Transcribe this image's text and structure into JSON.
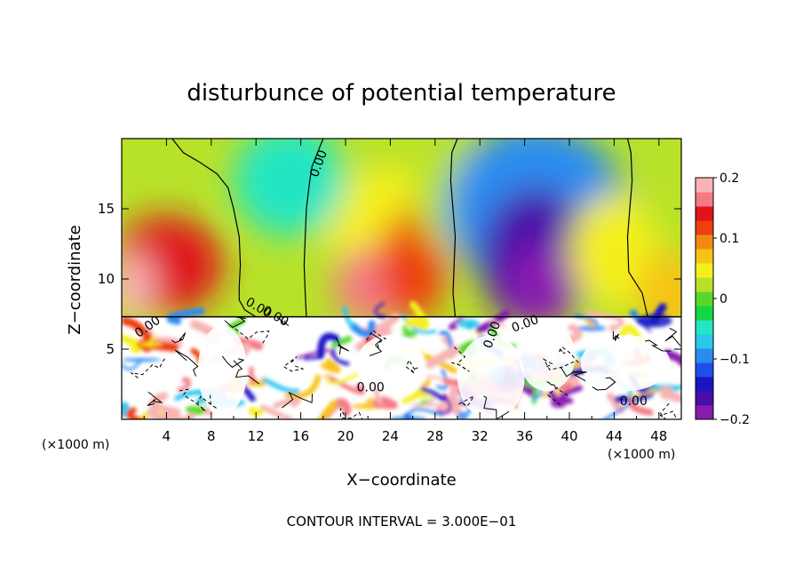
{
  "chart_data": {
    "type": "heatmap",
    "title": "disturbunce of potential temperature",
    "xlabel": "X−coordinate",
    "ylabel": "Z−coordinate",
    "x_unit": "(×1000 m)",
    "y_unit": "(×1000 m)",
    "xlim": [
      0,
      50
    ],
    "ylim": [
      0,
      20
    ],
    "x_ticks": [
      4,
      8,
      12,
      16,
      20,
      24,
      28,
      32,
      36,
      40,
      44,
      48
    ],
    "y_ticks": [
      5,
      10,
      15
    ],
    "colorbar": {
      "range": [
        -0.2,
        0.2
      ],
      "tick_values": [
        0.2,
        0.1,
        0,
        -0.1,
        -0.2
      ],
      "tick_labels": [
        "0.2",
        "0.1",
        "0",
        "−0.1",
        "−0.2"
      ],
      "colors": [
        "#8a1bb0",
        "#4a0fa8",
        "#1a14c4",
        "#1f4fe8",
        "#2b8cf0",
        "#2cc7ef",
        "#22e6c2",
        "#14d640",
        "#5ad82a",
        "#b8e22a",
        "#f4f01e",
        "#f7c316",
        "#f28a12",
        "#ee3f10",
        "#e0141a",
        "#f47b85",
        "#f8b4b4"
      ]
    },
    "contour_interval": "CONTOUR INTERVAL = 3.000E−01",
    "contour_labels": [
      "0.00",
      "0.00",
      "0.00",
      "0.00",
      "0.00",
      "0.00",
      "0.00",
      "0.00"
    ],
    "blobs": [
      {
        "x": 24,
        "z": 14,
        "v": 0.04
      },
      {
        "x": 4,
        "z": 11,
        "v": 0.13
      },
      {
        "x": 1,
        "z": 9.5,
        "v": 0.18
      },
      {
        "x": 22,
        "z": 9.5,
        "v": 0.16
      },
      {
        "x": 26,
        "z": 11,
        "v": 0.12
      },
      {
        "x": 30,
        "z": 16,
        "v": 0.03
      },
      {
        "x": 15,
        "z": 17,
        "v": -0.05
      },
      {
        "x": 37,
        "z": 15,
        "v": -0.09
      },
      {
        "x": 37,
        "z": 11.5,
        "v": -0.16
      },
      {
        "x": 37.5,
        "z": 9.5,
        "v": -0.2
      },
      {
        "x": 44,
        "z": 12,
        "v": 0.05
      },
      {
        "x": 49,
        "z": 9,
        "v": 0.08
      }
    ],
    "contours": [
      {
        "x": [
          4.5,
          5.5,
          7,
          8.5,
          9.5,
          10,
          10.5,
          10.6,
          10.5,
          10.5,
          11,
          12
        ],
        "z": [
          20,
          19,
          18.3,
          17.5,
          16.5,
          15,
          13,
          11,
          9.5,
          8.5,
          7.8,
          7.3
        ]
      },
      {
        "x": [
          18,
          17.5,
          17,
          16.8,
          16.5,
          16.4,
          16.3,
          16.4,
          16.5
        ],
        "z": [
          20,
          19,
          18,
          17,
          15,
          13,
          11,
          9,
          7.3
        ]
      },
      {
        "x": [
          30,
          29.5,
          29.4,
          29.6,
          29.8,
          29.7,
          29.6,
          29.8
        ],
        "z": [
          20,
          19,
          17,
          15,
          13,
          11,
          9,
          7.3
        ]
      },
      {
        "x": [
          45.2,
          45.5,
          45.6,
          45.4,
          45.2,
          45.3,
          46.5,
          47
        ],
        "z": [
          20,
          19,
          17,
          15,
          13,
          10.5,
          9,
          7.3
        ]
      }
    ],
    "lower_layer_top": 7.3
  }
}
